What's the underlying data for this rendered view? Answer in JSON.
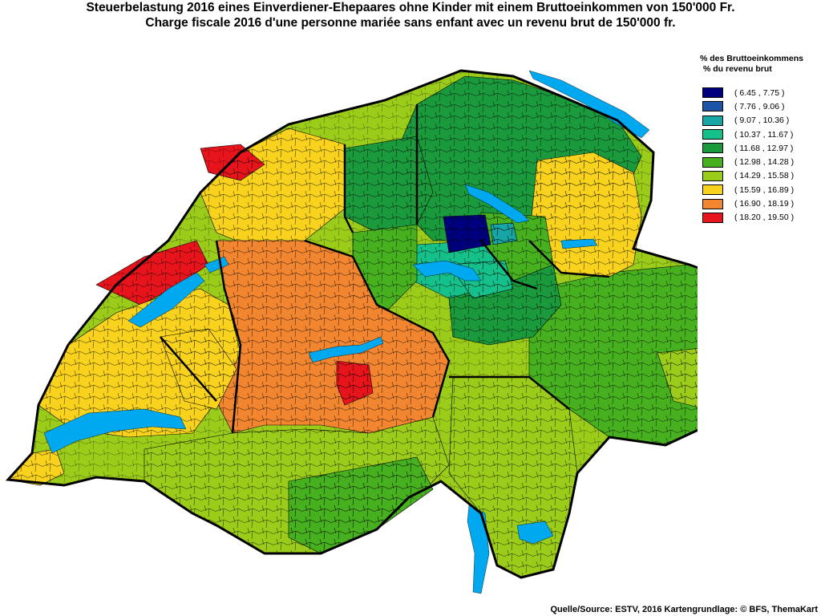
{
  "title_de": "Steuerbelastung 2016 eines Einverdiener-Ehepaares ohne Kinder mit einem Bruttoeinkommen von 150'000 Fr.",
  "title_fr": "Charge fiscale 2016 d'une personne mariée sans enfant avec un revenu brut de 150'000 fr.",
  "legend": {
    "title_de": "% des Bruttoeinkommens",
    "title_fr": "% du revenu brut",
    "items": [
      {
        "range": "( 6.45 , 7.75 )",
        "color": "#00007f"
      },
      {
        "range": "( 7.76 , 9.06 )",
        "color": "#1c55a8"
      },
      {
        "range": "( 9.07 , 10.36 )",
        "color": "#17a5a5"
      },
      {
        "range": "( 10.37 , 11.67 )",
        "color": "#16c08a"
      },
      {
        "range": "( 11.68 , 12.97 )",
        "color": "#1a9a3c"
      },
      {
        "range": "( 12.98 , 14.28 )",
        "color": "#47b01f"
      },
      {
        "range": "( 14.29 , 15.58 )",
        "color": "#9ccc1a"
      },
      {
        "range": "( 15.59 , 16.89 )",
        "color": "#f8d21c"
      },
      {
        "range": "( 16.90 , 18.19 )",
        "color": "#f28530"
      },
      {
        "range": "( 18.20 , 19.50 )",
        "color": "#e8141c"
      }
    ]
  },
  "lake_color": "#00a8f0",
  "source": "Quelle/Source: ESTV, 2016 Kartengrundlage: © BFS, ThemaKart"
}
